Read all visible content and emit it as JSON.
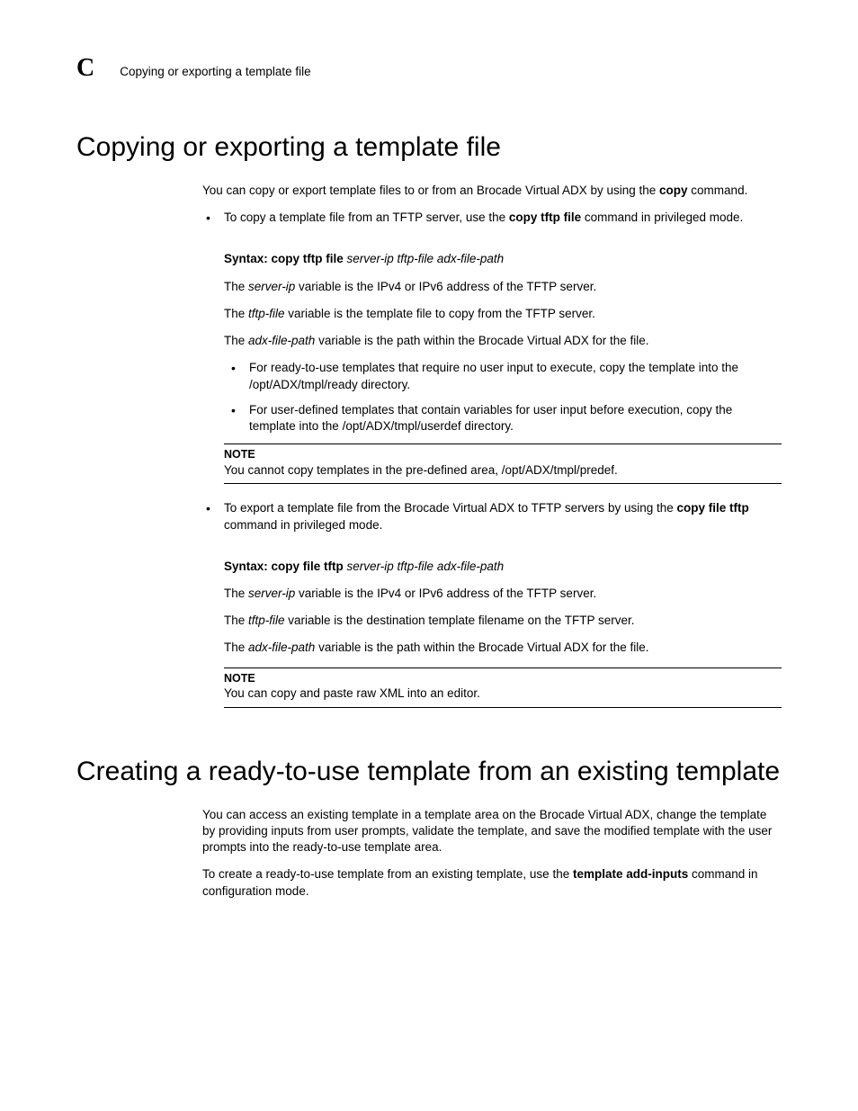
{
  "page": {
    "section_letter": "C",
    "header_text": "Copying or exporting a template file"
  },
  "h1_a": "Copying or exporting a template file",
  "intro_a_1": "You can copy or export template files to or from an Brocade Virtual ADX by using the ",
  "intro_a_cmd": "copy",
  "intro_a_2": " command.",
  "bullet1_a": "To copy a template file from an TFTP server, use the ",
  "bullet1_cmd": "copy tftp file",
  "bullet1_b": " command in privileged mode.",
  "syntax1_label": "Syntax:  ",
  "syntax1_cmd": "copy tftp file",
  "syntax1_args": " server-ip tftp-file adx-file-path",
  "s1_p1_a": "The ",
  "s1_p1_var": "server-ip",
  "s1_p1_b": " variable is the IPv4 or IPv6 address of the TFTP server.",
  "s1_p2_a": "The ",
  "s1_p2_var": "tftp-file",
  "s1_p2_b": " variable is the template file to copy from the TFTP server.",
  "s1_p3_a": "The ",
  "s1_p3_var": "adx-file-path",
  "s1_p3_b": " variable is the path within the Brocade Virtual ADX for the file.",
  "inner1": "For ready-to-use templates that require no user input to execute, copy the template into the /opt/ADX/tmpl/ready directory.",
  "inner2": "For user-defined templates that contain variables for user input before execution, copy the template into the /opt/ADX/tmpl/userdef directory.",
  "note1_title": "NOTE",
  "note1_body": "You cannot copy templates in the pre-defined area, /opt/ADX/tmpl/predef.",
  "bullet2_a": "To export a template file from the Brocade Virtual ADX to TFTP servers by using the ",
  "bullet2_cmd": "copy file tftp",
  "bullet2_b": " command in privileged mode.",
  "syntax2_label": "Syntax:  ",
  "syntax2_cmd": "copy file tftp",
  "syntax2_args": " server-ip tftp-file adx-file-path",
  "s2_p1_a": "The ",
  "s2_p1_var": "server-ip",
  "s2_p1_b": " variable is the IPv4 or IPv6 address of the TFTP server.",
  "s2_p2_a": "The ",
  "s2_p2_var": "tftp-file",
  "s2_p2_b": " variable is the destination template filename on the TFTP server.",
  "s2_p3_a": "The ",
  "s2_p3_var": "adx-file-path",
  "s2_p3_b": " variable is the path within the Brocade Virtual ADX for the file.",
  "note2_title": "NOTE",
  "note2_body": "You can copy and paste raw XML into an editor.",
  "h1_b": "Creating a ready-to-use template from an existing template",
  "intro_b": "You can access an existing template in a template area on the Brocade Virtual ADX, change the template by providing inputs from user prompts, validate the template, and save the modified template with the user prompts into the ready-to-use template area.",
  "intro_b2_a": "To create a ready-to-use template from an existing template, use the ",
  "intro_b2_cmd": "template add-inputs",
  "intro_b2_b": " command in configuration mode."
}
